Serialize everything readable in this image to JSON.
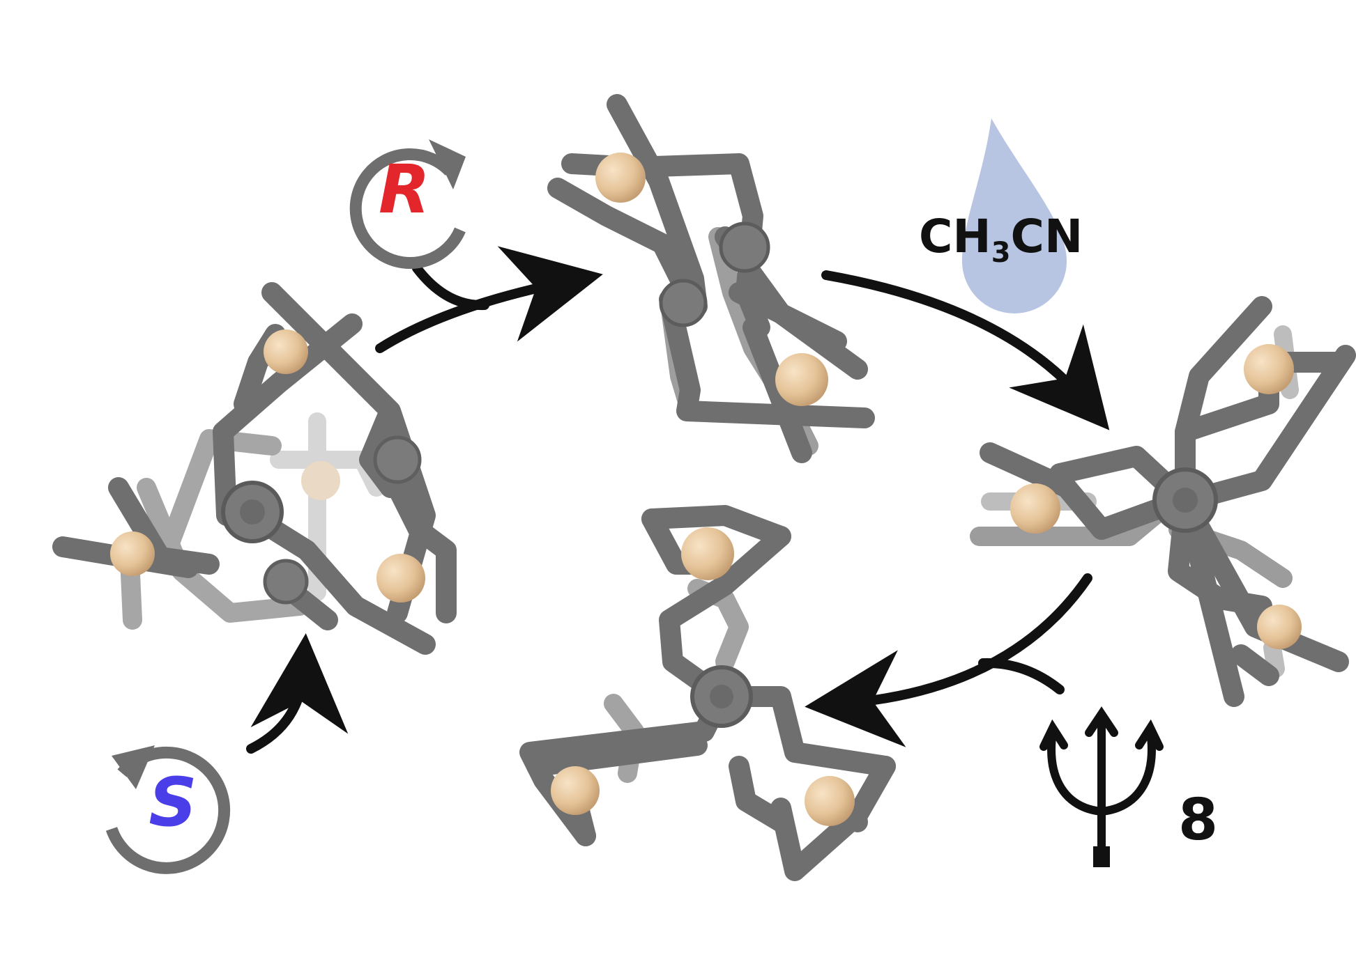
{
  "labels": {
    "r_descriptor": "R",
    "s_descriptor": "S",
    "solvent_formula_prefix": "CH",
    "solvent_formula_subscript": "3",
    "solvent_formula_suffix": "CN",
    "trident_count": "8"
  },
  "colors": {
    "background": "#ffffff",
    "rod": "#6f6f6f",
    "rod_light": "#b9b9b9",
    "rod_faint": "#d8d8d8",
    "sphere": "#e9c9a0",
    "sphere_shade": "#c9a27a",
    "arrow": "#111111",
    "rotation_circle": "#6e6e6e",
    "r_text": "#e3262c",
    "s_text": "#4a3ee8",
    "drop": "#b7c4e2",
    "text": "#111111"
  },
  "icons": {
    "rotation_r": "clockwise-rotation-icon",
    "rotation_s": "counterclockwise-rotation-icon",
    "solvent": "water-drop-icon",
    "reagent": "trident-icon"
  }
}
